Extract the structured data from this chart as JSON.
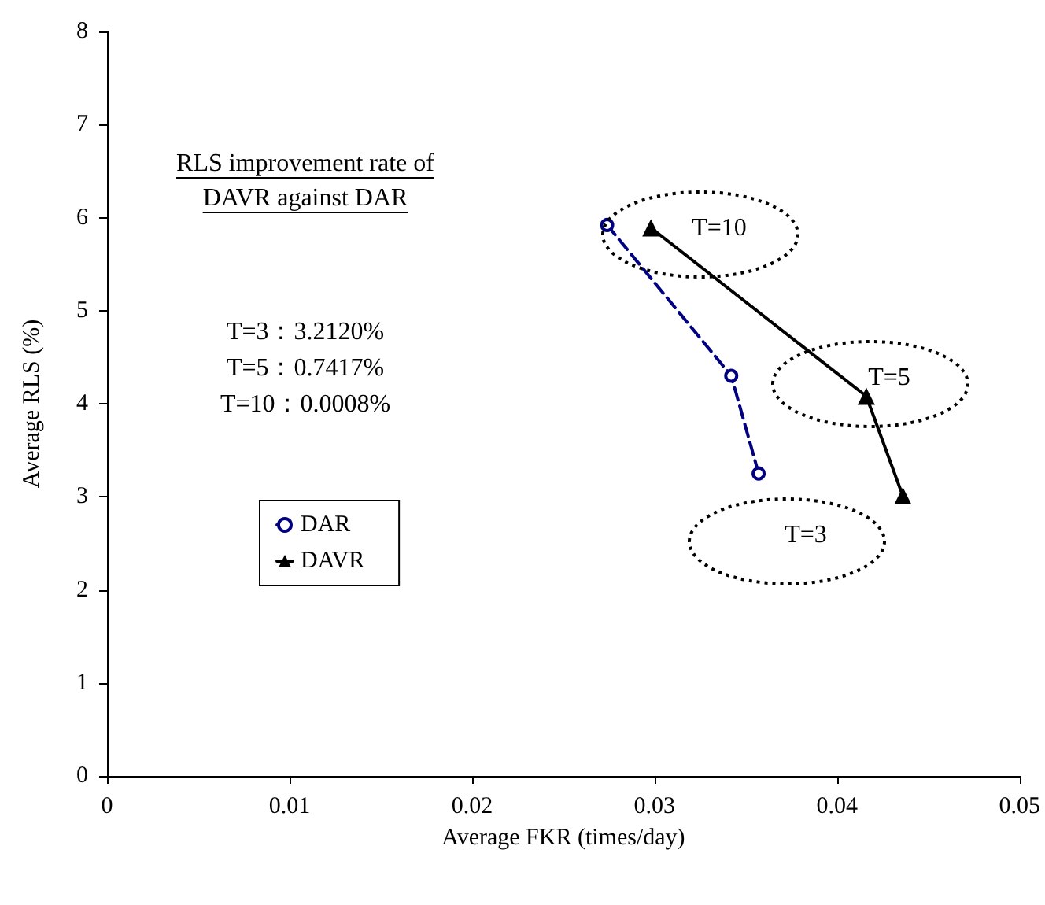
{
  "chart_data": {
    "type": "line",
    "xlabel": "Average FKR (times/day)",
    "ylabel": "Average RLS (%)",
    "xlim": [
      0,
      0.05
    ],
    "xticks": [
      0,
      0.01,
      0.02,
      0.03,
      0.04,
      0.05
    ],
    "ylim": [
      0,
      8
    ],
    "yticks": [
      0,
      1,
      2,
      3,
      4,
      5,
      6,
      7,
      8
    ],
    "grid": false,
    "legend": "left",
    "series": [
      {
        "name": "DAR",
        "color": "#000080",
        "marker": "circle",
        "line_style": "dashed",
        "x": [
          0.0274,
          0.0342,
          0.0357
        ],
        "values": [
          5.92,
          4.3,
          3.25
        ]
      },
      {
        "name": "DAVR",
        "color": "#000000",
        "marker": "triangle",
        "line_style": "solid",
        "x": [
          0.0298,
          0.0416,
          0.0436
        ],
        "values": [
          5.89,
          4.08,
          3.01
        ]
      }
    ],
    "annotations": [
      "RLS improvement rate of",
      "DAVR against DAR",
      "T=3：3.2120%",
      "T=5：0.7417%",
      "T=10：0.0008%",
      "T=10",
      "T=5",
      "T=3"
    ]
  }
}
